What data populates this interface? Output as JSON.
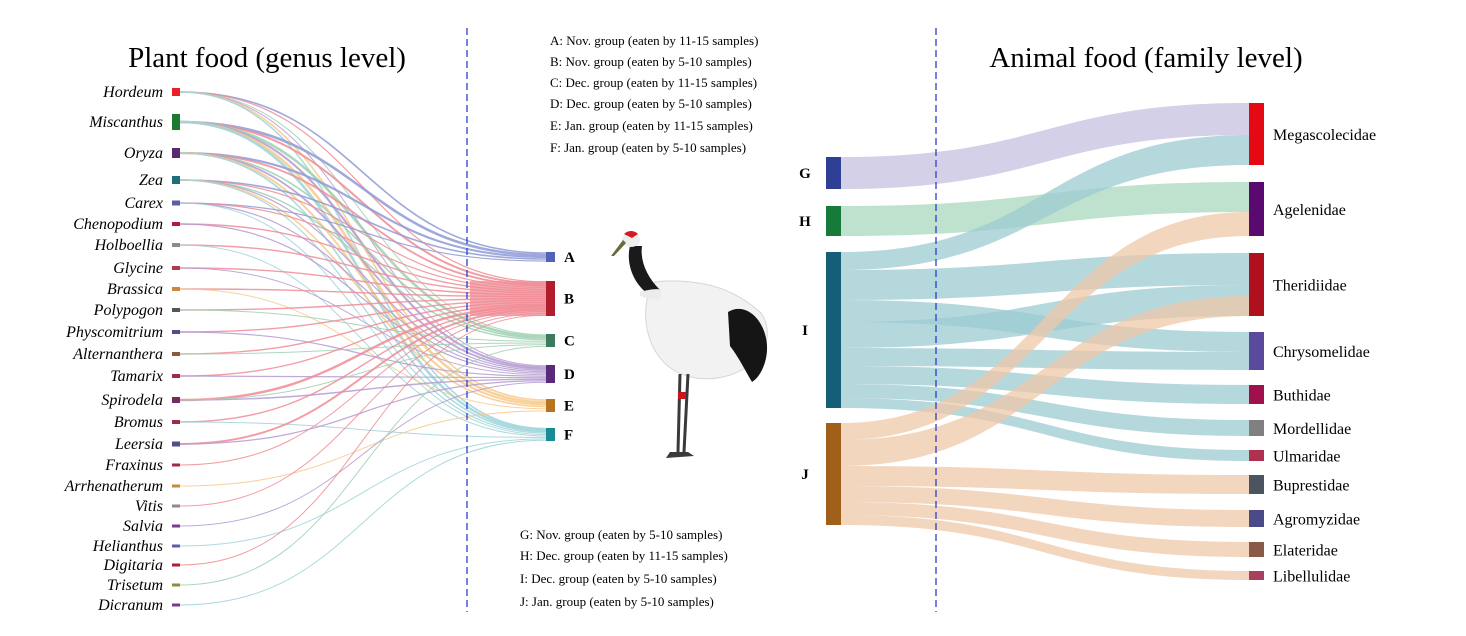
{
  "left_title": "Plant food (genus level)",
  "right_title": "Animal food (family level)",
  "plant_genera": [
    {
      "name": "Hordeum",
      "color": "#e8202b"
    },
    {
      "name": "Miscanthus",
      "color": "#1b7a32"
    },
    {
      "name": "Oryza",
      "color": "#5a2a6e"
    },
    {
      "name": "Zea",
      "color": "#1f6e7b"
    },
    {
      "name": "Carex",
      "color": "#5a5fa8"
    },
    {
      "name": "Chenopodium",
      "color": "#b01e35"
    },
    {
      "name": "Holboellia",
      "color": "#8c8c8c"
    },
    {
      "name": "Glycine",
      "color": "#b23a4f"
    },
    {
      "name": "Brassica",
      "color": "#c9893c"
    },
    {
      "name": "Polypogon",
      "color": "#4a5a5a"
    },
    {
      "name": "Physcomitrium",
      "color": "#4e4f8c"
    },
    {
      "name": "Alternanthera",
      "color": "#8b5a3c"
    },
    {
      "name": "Tamarix",
      "color": "#9b2d45"
    },
    {
      "name": "Spirodela",
      "color": "#7a2a5e"
    },
    {
      "name": "Bromus",
      "color": "#9b2d45"
    },
    {
      "name": "Leersia",
      "color": "#4e4f8c"
    },
    {
      "name": "Fraxinus",
      "color": "#9b2d45"
    },
    {
      "name": "Arrhenatherum",
      "color": "#c9893c"
    },
    {
      "name": "Vitis",
      "color": "#8c8c8c"
    },
    {
      "name": "Salvia",
      "color": "#7a3a8e"
    },
    {
      "name": "Helianthus",
      "color": "#5a5fa8"
    },
    {
      "name": "Digitaria",
      "color": "#b01e35"
    },
    {
      "name": "Trisetum",
      "color": "#8c8c3c"
    },
    {
      "name": "Dicranum",
      "color": "#7a3a8e"
    }
  ],
  "plant_groups": [
    {
      "id": "A",
      "color": "#4f63b8",
      "flow": "#8f9ad6"
    },
    {
      "id": "B",
      "color": "#b01e2e",
      "flow": "#f08c95"
    },
    {
      "id": "C",
      "color": "#3e7a5e",
      "flow": "#9fd0b0"
    },
    {
      "id": "D",
      "color": "#5a2a7a",
      "flow": "#b49ad2"
    },
    {
      "id": "E",
      "color": "#b5761f",
      "flow": "#f7c98a"
    },
    {
      "id": "F",
      "color": "#1a8a96",
      "flow": "#9ed4da"
    }
  ],
  "legend_plant": [
    "A: Nov. group (eaten by 11-15 samples)",
    "B: Nov. group (eaten by 5-10 samples)",
    "C: Dec. group (eaten by 11-15 samples)",
    "D: Dec. group (eaten by 5-10 samples)",
    "E: Jan. group (eaten by 11-15 samples)",
    "F: Jan. group (eaten by 5-10 samples)"
  ],
  "legend_animal": [
    "G: Nov. group (eaten by 5-10 samples)",
    "H: Dec. group (eaten by 11-15 samples)",
    "I: Dec. group (eaten by 5-10 samples)",
    "J: Jan. group (eaten by 5-10 samples)"
  ],
  "animal_groups": [
    {
      "id": "G",
      "color": "#2e3f95",
      "flow": "#c4c0e0"
    },
    {
      "id": "H",
      "color": "#157a3a",
      "flow": "#a9d8bd"
    },
    {
      "id": "I",
      "color": "#155e78",
      "flow": "#9ccbd2"
    },
    {
      "id": "J",
      "color": "#a0601a",
      "flow": "#efc8a8"
    }
  ],
  "animal_families": [
    {
      "name": "Megascolecidae",
      "color": "#e50914"
    },
    {
      "name": "Agelenidae",
      "color": "#5a0a6e"
    },
    {
      "name": "Theridiidae",
      "color": "#b0101e"
    },
    {
      "name": "Chrysomelidae",
      "color": "#5a4a9e"
    },
    {
      "name": "Buthidae",
      "color": "#a0104a"
    },
    {
      "name": "Mordellidae",
      "color": "#808080"
    },
    {
      "name": "Ulmaridae",
      "color": "#b03050"
    },
    {
      "name": "Buprestidae",
      "color": "#4a5560"
    },
    {
      "name": "Agromyzidae",
      "color": "#4a4a88"
    },
    {
      "name": "Elateridae",
      "color": "#8a5a48"
    },
    {
      "name": "Libellulidae",
      "color": "#a84060"
    }
  ],
  "divider_color": "#2a3fcf",
  "crane_image": "red-crowned crane photo"
}
